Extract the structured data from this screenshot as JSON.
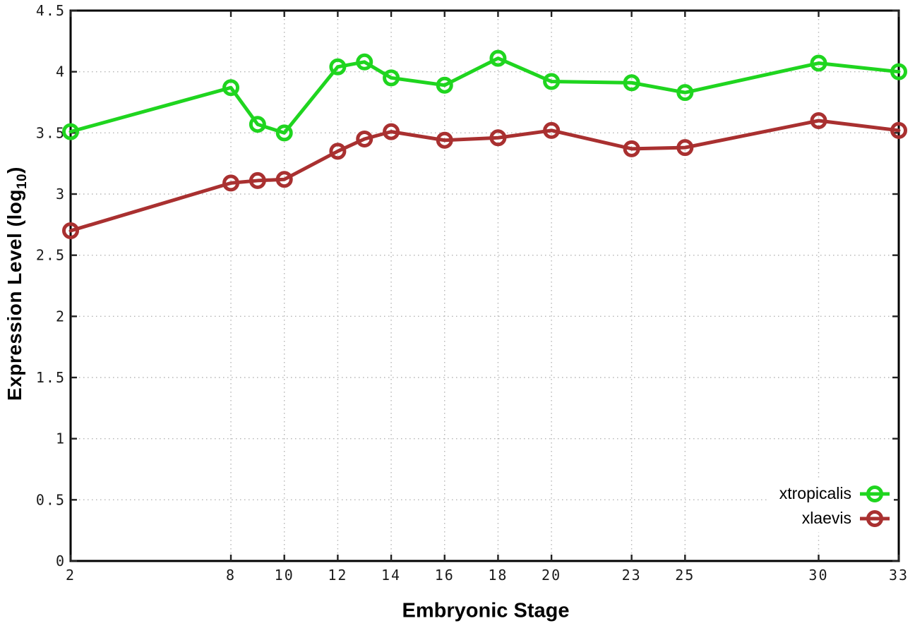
{
  "chart_data": {
    "type": "line",
    "title": "",
    "xlabel": "Embryonic Stage",
    "ylabel": "Expression Level (log10)",
    "x": [
      2,
      8,
      9,
      10,
      12,
      13,
      14,
      16,
      18,
      20,
      23,
      25,
      30,
      33
    ],
    "xlim": [
      2,
      33
    ],
    "ylim": [
      0,
      4.5
    ],
    "xtick_values": [
      2,
      8,
      10,
      12,
      14,
      16,
      18,
      20,
      23,
      25,
      30,
      33
    ],
    "xtick_labels": [
      "2",
      "8",
      "10",
      "12",
      "14",
      "16",
      "18",
      "20",
      "23",
      "25",
      "30",
      "33"
    ],
    "ytick_values": [
      0,
      0.5,
      1,
      1.5,
      2,
      2.5,
      3,
      3.5,
      4,
      4.5
    ],
    "ytick_labels": [
      "0",
      "0.5",
      "1",
      "1.5",
      "2",
      "2.5",
      "3",
      "3.5",
      "4",
      "4.5"
    ],
    "grid": true,
    "legend_position": "bottom-right",
    "marker": "open-circle",
    "series": [
      {
        "name": "xtropicalis",
        "color": "#1fd51f",
        "values": [
          3.51,
          3.87,
          3.57,
          3.5,
          4.04,
          4.08,
          3.95,
          3.89,
          4.11,
          3.92,
          3.91,
          3.83,
          4.07,
          4.0
        ]
      },
      {
        "name": "xlaevis",
        "color": "#a93030",
        "values": [
          2.7,
          3.09,
          3.11,
          3.12,
          3.35,
          3.45,
          3.51,
          3.44,
          3.46,
          3.52,
          3.37,
          3.38,
          3.6,
          3.52
        ]
      }
    ]
  },
  "labels": {
    "x_title": "Embryonic Stage",
    "y_title_prefix": "Expression Level (log",
    "y_title_sub": "10",
    "y_title_suffix": ")"
  },
  "colors": {
    "background": "#ffffff",
    "border": "#000000",
    "grid": "#b5b5b5",
    "tick_text": "#1a1a1a"
  }
}
